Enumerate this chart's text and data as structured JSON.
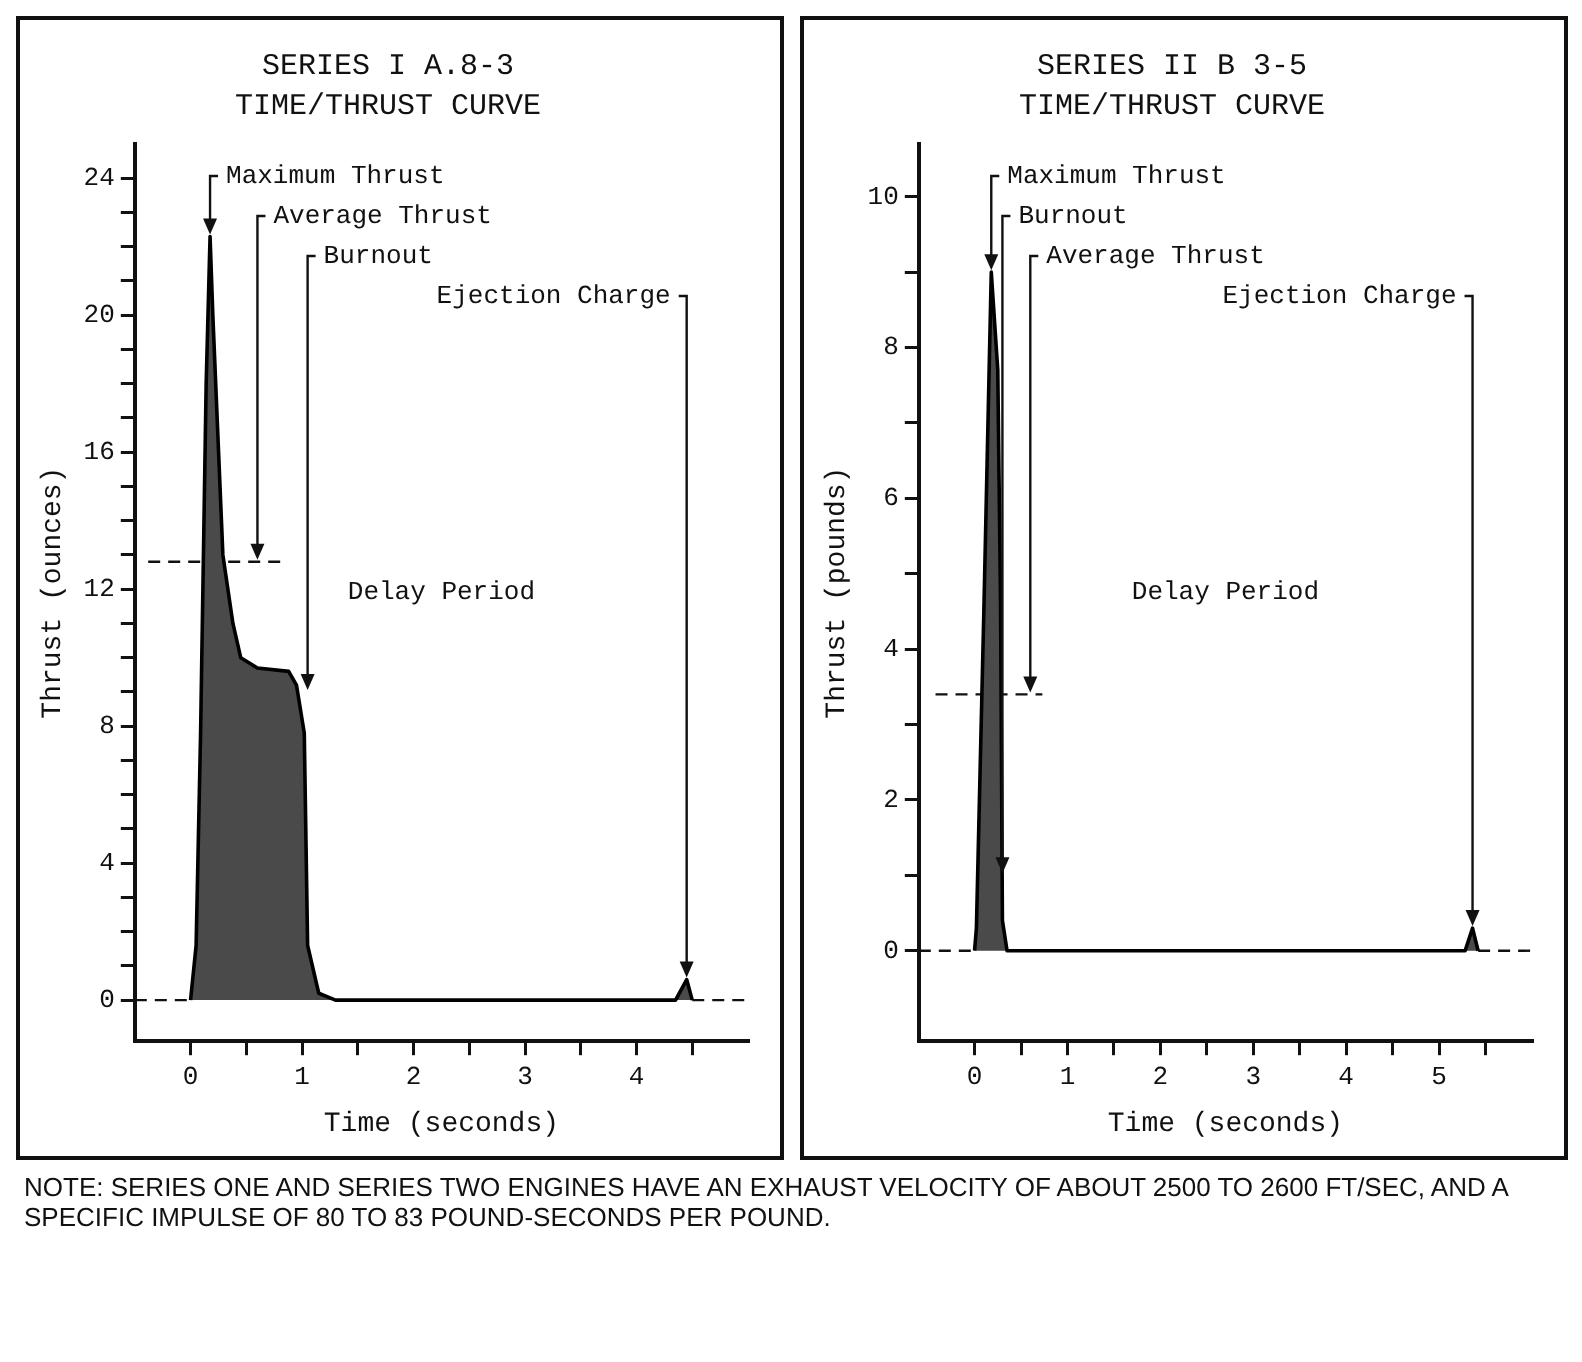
{
  "chart_data": [
    {
      "type": "area",
      "title": "SERIES I A.8-3",
      "subtitle": "TIME/THRUST CURVE",
      "xlabel": "Time (seconds)",
      "ylabel": "Thrust (ounces)",
      "xlim": [
        -0.5,
        5.0
      ],
      "ylim": [
        -1.2,
        25
      ],
      "xticks": [
        0,
        {
          "value": 0.5,
          "label": null
        },
        1,
        {
          "value": 1.5,
          "label": null
        },
        2,
        {
          "value": 2.5,
          "label": null
        },
        3,
        {
          "value": 3.5,
          "label": null
        },
        4,
        {
          "value": 4.5,
          "label": null
        }
      ],
      "yticks": [
        0,
        {
          "value": 1,
          "label": null
        },
        {
          "value": 2,
          "label": null
        },
        {
          "value": 3,
          "label": null
        },
        4,
        {
          "value": 5,
          "label": null
        },
        {
          "value": 6,
          "label": null
        },
        {
          "value": 7,
          "label": null
        },
        8,
        {
          "value": 9,
          "label": null
        },
        {
          "value": 10,
          "label": null
        },
        {
          "value": 11,
          "label": null
        },
        12,
        {
          "value": 13,
          "label": null
        },
        {
          "value": 14,
          "label": null
        },
        {
          "value": 15,
          "label": null
        },
        16,
        {
          "value": 17,
          "label": null
        },
        {
          "value": 18,
          "label": null
        },
        {
          "value": 19,
          "label": null
        },
        20,
        {
          "value": 21,
          "label": null
        },
        {
          "value": 22,
          "label": null
        },
        {
          "value": 23,
          "label": null
        },
        24
      ],
      "series": [
        {
          "type": "area",
          "color": "#4a4a4a",
          "x": [
            0,
            0.05,
            0.09,
            0.14,
            0.175,
            0.2,
            0.29,
            0.38,
            0.45,
            0.6,
            0.88,
            0.95,
            1.02,
            1.05,
            1.15,
            1.3,
            4.35,
            4.45,
            4.5
          ],
          "values": [
            0,
            1.6,
            7.8,
            18,
            22.3,
            20,
            13,
            11,
            10,
            9.7,
            9.6,
            9.2,
            7.8,
            1.6,
            0.2,
            0,
            0,
            0.6,
            0
          ]
        },
        {
          "type": "line",
          "color": "#111111",
          "line_style": "dashed",
          "x": [
            -0.5,
            0
          ],
          "values": [
            0,
            0
          ]
        },
        {
          "type": "line",
          "color": "#111111",
          "line_style": "dashed",
          "x": [
            4.5,
            5.0
          ],
          "values": [
            0,
            0
          ]
        },
        {
          "type": "line",
          "color": "#111111",
          "line_style": "dashed",
          "x": [
            -0.38,
            0.83
          ],
          "values": [
            12.8,
            12.8
          ]
        }
      ],
      "annotations": [
        {
          "text": "Maximum Thrust",
          "x": 0.175,
          "y": 22.3
        },
        {
          "text": "Average Thrust",
          "x": 0.6,
          "y": 12.8
        },
        {
          "text": "Burnout",
          "x": 1.05,
          "y": 9
        },
        {
          "text": "Ejection Charge",
          "x": 4.45,
          "y": 0.6
        },
        "Delay Period"
      ]
    },
    {
      "type": "area",
      "title": "SERIES II B 3-5",
      "subtitle": "TIME/THRUST CURVE",
      "xlabel": "Time (seconds)",
      "ylabel": "Thrust (pounds)",
      "xlim": [
        -0.6,
        6.0
      ],
      "ylim": [
        -1.2,
        10.7
      ],
      "xticks": [
        0,
        {
          "value": 0.5,
          "label": null
        },
        1,
        {
          "value": 1.5,
          "label": null
        },
        2,
        {
          "value": 2.5,
          "label": null
        },
        3,
        {
          "value": 3.5,
          "label": null
        },
        4,
        {
          "value": 4.5,
          "label": null
        },
        5,
        {
          "value": 5.5,
          "label": null
        }
      ],
      "yticks": [
        0,
        {
          "value": 1,
          "label": null
        },
        2,
        {
          "value": 3,
          "label": null
        },
        4,
        {
          "value": 5,
          "label": null
        },
        6,
        {
          "value": 7,
          "label": null
        },
        8,
        {
          "value": 9,
          "label": null
        },
        10
      ],
      "series": [
        {
          "type": "area",
          "color": "#4a4a4a",
          "x": [
            0,
            0.02,
            0.1,
            0.18,
            0.25,
            0.28,
            0.3,
            0.35,
            5.28,
            5.36,
            5.42
          ],
          "values": [
            0,
            0.3,
            4.5,
            9,
            7.7,
            4.6,
            0.4,
            0,
            0,
            0.3,
            0
          ]
        },
        {
          "type": "line",
          "color": "#111111",
          "line_style": "dashed",
          "x": [
            -0.6,
            0
          ],
          "values": [
            0,
            0
          ]
        },
        {
          "type": "line",
          "color": "#111111",
          "line_style": "dashed",
          "x": [
            5.42,
            6.0
          ],
          "values": [
            0,
            0
          ]
        },
        {
          "type": "line",
          "color": "#111111",
          "line_style": "dashed",
          "x": [
            -0.42,
            0.73
          ],
          "values": [
            3.4,
            3.4
          ]
        }
      ],
      "annotations": [
        {
          "text": "Maximum Thrust",
          "x": 0.18,
          "y": 9
        },
        {
          "text": "Burnout",
          "x": 0.3,
          "y": 1
        },
        {
          "text": "Average Thrust",
          "x": 0.6,
          "y": 3.4
        },
        {
          "text": "Ejection Charge",
          "x": 5.36,
          "y": 0.3
        },
        "Delay Period"
      ]
    },
    {
      "type": "other",
      "annotations": [
        "NOTE: SERIES ONE AND SERIES TWO ENGINES HAVE AN EXHAUST VELOCITY OF ABOUT 2500 TO 2600 FT/SEC, AND A SPECIFIC IMPULSE OF 80 TO 83 POUND-SECONDS PER POUND."
      ]
    }
  ]
}
